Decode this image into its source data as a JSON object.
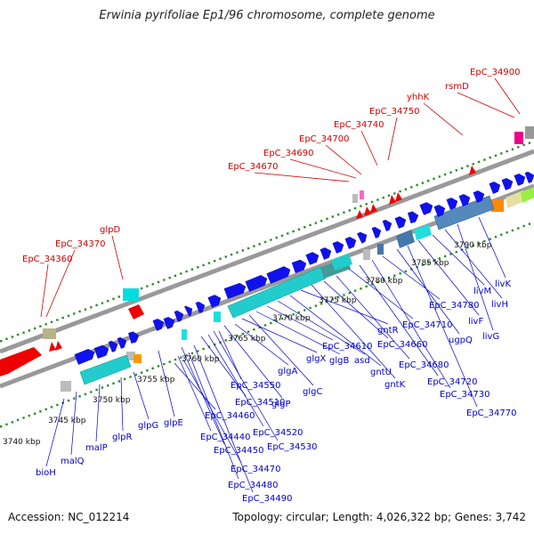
{
  "title": "Erwinia pyrifoliae Ep1/96 chromosome, complete genome",
  "accession": "Accession: NC_012214",
  "summary": "Topology: circular; Length: 4,026,322 bp; Genes: 3,742",
  "colors": {
    "backbone": "#999999",
    "label_red": "#d00000",
    "label_blue": "#0000cc",
    "tick_dots": "#2e8b2e"
  },
  "ticks": [
    "3740 kbp",
    "3745 kbp",
    "3750 kbp",
    "3755 kbp",
    "3760 kbp",
    "3765 kbp",
    "3770 kbp",
    "3775 kbp",
    "3780 kbp",
    "3785 kbp",
    "3790 kbp"
  ],
  "labels_top": [
    "EpC_34360",
    "EpC_34370",
    "glpD",
    "EpC_34670",
    "EpC_34690",
    "EpC_34700",
    "EpC_34740",
    "EpC_34750",
    "yhhK",
    "rsmD",
    "EpC_34900"
  ],
  "labels_bottom": [
    "bioH",
    "malQ",
    "malP",
    "glpR",
    "glpG",
    "glpE",
    "EpC_34440",
    "EpC_34450",
    "EpC_34460",
    "EpC_34470",
    "EpC_34480",
    "EpC_34490",
    "EpC_34510",
    "EpC_34520",
    "EpC_34530",
    "EpC_34550",
    "glgP",
    "glgA",
    "glgX",
    "glgC",
    "glgB",
    "EpC_34610",
    "asd",
    "gntU",
    "gntR",
    "gntK",
    "EpC_34660",
    "EpC_34680",
    "EpC_34710",
    "EpC_34720",
    "EpC_34730",
    "EpC_34780",
    "ugpQ",
    "EpC_34770",
    "livF",
    "livM",
    "livH",
    "livG",
    "livK"
  ]
}
